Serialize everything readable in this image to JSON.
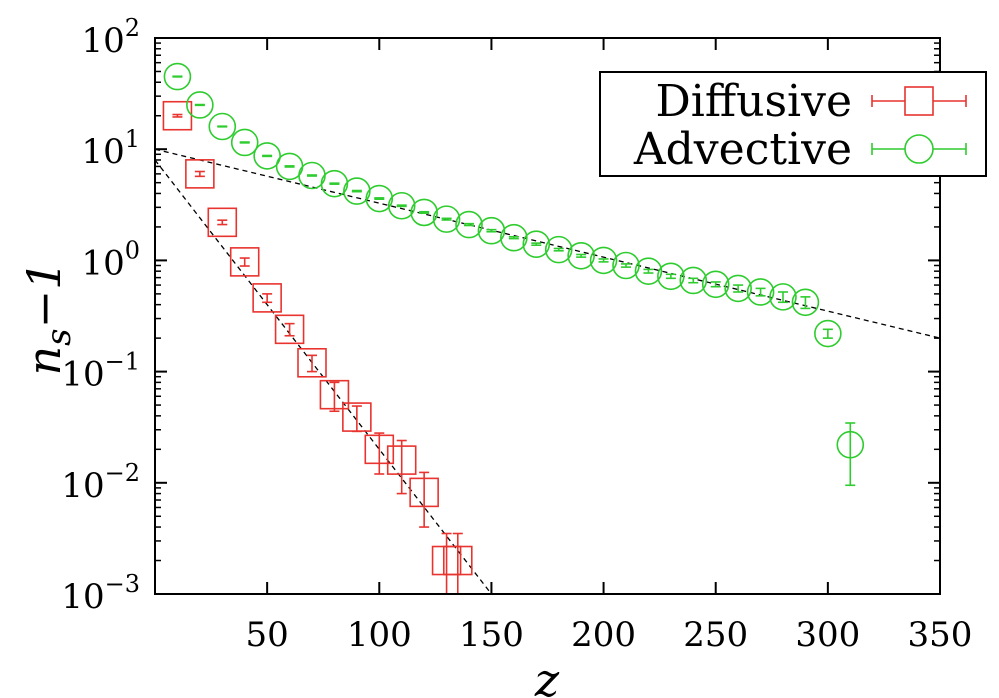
{
  "chart_data": {
    "type": "scatter",
    "title": "",
    "xlabel": "z",
    "ylabel": {
      "main": "n",
      "sub": "s",
      "suffix": "−1"
    },
    "xlim": [
      0,
      350
    ],
    "ylim": [
      0.001,
      100
    ],
    "yscale": "log",
    "grid": false,
    "legend_position": "top-right",
    "x_ticks": [
      {
        "value": 50,
        "label": "50"
      },
      {
        "value": 100,
        "label": "100"
      },
      {
        "value": 150,
        "label": "150"
      },
      {
        "value": 200,
        "label": "200"
      },
      {
        "value": 250,
        "label": "250"
      },
      {
        "value": 300,
        "label": "300"
      },
      {
        "value": 350,
        "label": "350"
      }
    ],
    "y_ticks": [
      {
        "value": 100,
        "base": "10",
        "exp": "2"
      },
      {
        "value": 10,
        "base": "10",
        "exp": "1"
      },
      {
        "value": 1,
        "base": "10",
        "exp": "0"
      },
      {
        "value": 0.1,
        "base": "10",
        "exp": "−1"
      },
      {
        "value": 0.01,
        "base": "10",
        "exp": "−2"
      },
      {
        "value": 0.001,
        "base": "10",
        "exp": "−3"
      }
    ],
    "series": [
      {
        "name": "Diffusive",
        "marker": "square",
        "color": "#e8332f",
        "x": [
          10,
          20,
          30,
          40,
          50,
          60,
          70,
          80,
          90,
          100,
          110,
          120,
          130,
          135
        ],
        "y": [
          20,
          6,
          2.2,
          0.97,
          0.46,
          0.24,
          0.12,
          0.062,
          0.039,
          0.02,
          0.016,
          0.0082,
          0.002,
          0.002
        ],
        "err": [
          0.5,
          0.3,
          0.1,
          0.08,
          0.04,
          0.03,
          0.02,
          0.018,
          0.01,
          0.008,
          0.008,
          0.0042,
          0.0015,
          0.0015
        ]
      },
      {
        "name": "Advective",
        "marker": "circle",
        "color": "#2ecc2e",
        "x": [
          10,
          20,
          30,
          40,
          50,
          60,
          70,
          80,
          90,
          100,
          110,
          120,
          130,
          140,
          150,
          160,
          170,
          180,
          190,
          200,
          210,
          220,
          230,
          240,
          250,
          260,
          270,
          280,
          290,
          300,
          310
        ],
        "y": [
          45,
          25,
          16,
          11.5,
          8.7,
          7.0,
          5.8,
          4.9,
          4.2,
          3.6,
          3.1,
          2.7,
          2.35,
          2.1,
          1.85,
          1.6,
          1.4,
          1.25,
          1.1,
          1.0,
          0.9,
          0.8,
          0.72,
          0.66,
          0.61,
          0.56,
          0.52,
          0.47,
          0.42,
          0.22,
          0.022
        ],
        "err": [
          0.3,
          0.2,
          0.1,
          0.1,
          0.08,
          0.08,
          0.06,
          0.05,
          0.05,
          0.05,
          0.04,
          0.04,
          0.04,
          0.04,
          0.04,
          0.03,
          0.03,
          0.03,
          0.03,
          0.03,
          0.03,
          0.03,
          0.03,
          0.03,
          0.03,
          0.04,
          0.04,
          0.05,
          0.05,
          0.02,
          0.0125
        ]
      }
    ],
    "fits": [
      {
        "name": "diffusive-fit",
        "x": [
          0,
          150
        ],
        "y": [
          8,
          0.001
        ]
      },
      {
        "name": "advective-fit",
        "x": [
          0,
          350
        ],
        "y": [
          10,
          0.2
        ]
      }
    ]
  }
}
